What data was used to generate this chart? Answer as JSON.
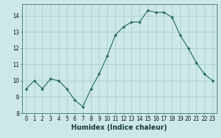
{
  "x": [
    0,
    1,
    2,
    3,
    4,
    5,
    6,
    7,
    8,
    9,
    10,
    11,
    12,
    13,
    14,
    15,
    16,
    17,
    18,
    19,
    20,
    21,
    22,
    23
  ],
  "y": [
    9.5,
    10.0,
    9.5,
    10.1,
    10.0,
    9.5,
    8.8,
    8.4,
    9.5,
    10.4,
    11.5,
    12.8,
    13.3,
    13.6,
    13.6,
    14.3,
    14.2,
    14.2,
    13.9,
    12.8,
    12.0,
    11.1,
    10.4,
    10.0
  ],
  "xlabel": "Humidex (Indice chaleur)",
  "ylim": [
    8,
    14.7
  ],
  "xlim": [
    -0.5,
    23.5
  ],
  "yticks": [
    8,
    9,
    10,
    11,
    12,
    13,
    14
  ],
  "xticks": [
    0,
    1,
    2,
    3,
    4,
    5,
    6,
    7,
    8,
    9,
    10,
    11,
    12,
    13,
    14,
    15,
    16,
    17,
    18,
    19,
    20,
    21,
    22,
    23
  ],
  "line_color": "#2d6e63",
  "marker_color": "#2d6e63",
  "bg_color": "#cce8e8",
  "grid_major_color": "#aacccc",
  "grid_minor_color": "#bbdddd",
  "tick_label_fontsize": 5.5,
  "xlabel_fontsize": 7.0
}
